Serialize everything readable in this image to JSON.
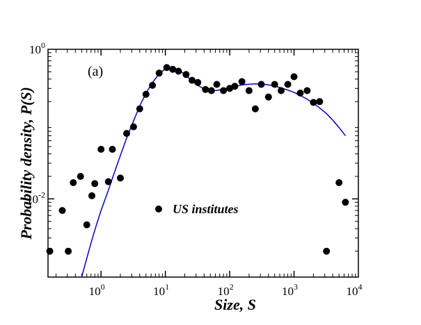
{
  "chart_data": {
    "type": "scatter",
    "title": "",
    "panel_label": "(a)",
    "xlabel": "Size, S",
    "ylabel": "Probability density, P(S)",
    "xscale": "log",
    "yscale": "log",
    "xlim": [
      0.15,
      10000
    ],
    "ylim": [
      0.0009,
      1.0
    ],
    "x_ticks": [
      {
        "value": 1,
        "base": "10",
        "exp": "0"
      },
      {
        "value": 10,
        "base": "10",
        "exp": "1"
      },
      {
        "value": 100,
        "base": "10",
        "exp": "2"
      },
      {
        "value": 1000,
        "base": "10",
        "exp": "3"
      },
      {
        "value": 10000,
        "base": "10",
        "exp": "4"
      }
    ],
    "y_ticks": [
      {
        "value": 0.01,
        "base": "10",
        "exp": "-2"
      },
      {
        "value": 1.0,
        "base": "10",
        "exp": "0"
      }
    ],
    "grid": false,
    "legend": {
      "position": "center-left",
      "entries": [
        "US institutes"
      ]
    },
    "series": [
      {
        "name": "US institutes",
        "kind": "markers",
        "marker": "circle",
        "color": "#000000",
        "points": [
          [
            0.16,
            0.002
          ],
          [
            0.25,
            0.007
          ],
          [
            0.31,
            0.002
          ],
          [
            0.37,
            0.0165
          ],
          [
            0.48,
            0.02
          ],
          [
            0.6,
            0.0045
          ],
          [
            0.72,
            0.011
          ],
          [
            0.8,
            0.016
          ],
          [
            1.0,
            0.046
          ],
          [
            1.3,
            0.017
          ],
          [
            1.5,
            0.046
          ],
          [
            2.0,
            0.019
          ],
          [
            2.5,
            0.075
          ],
          [
            3.2,
            0.092
          ],
          [
            4.0,
            0.16
          ],
          [
            5.0,
            0.25
          ],
          [
            6.3,
            0.33
          ],
          [
            8.0,
            0.48
          ],
          [
            10.5,
            0.57
          ],
          [
            13.0,
            0.54
          ],
          [
            16.0,
            0.51
          ],
          [
            21.0,
            0.46
          ],
          [
            26.0,
            0.385
          ],
          [
            32.0,
            0.36
          ],
          [
            42.0,
            0.29
          ],
          [
            52.0,
            0.28
          ],
          [
            63.0,
            0.34
          ],
          [
            80.0,
            0.28
          ],
          [
            100.0,
            0.3
          ],
          [
            120.0,
            0.32
          ],
          [
            155.0,
            0.37
          ],
          [
            200.0,
            0.28
          ],
          [
            250.0,
            0.16
          ],
          [
            310.0,
            0.34
          ],
          [
            400.0,
            0.23
          ],
          [
            500.0,
            0.34
          ],
          [
            630.0,
            0.28
          ],
          [
            800.0,
            0.34
          ],
          [
            1000.0,
            0.43
          ],
          [
            1250.0,
            0.26
          ],
          [
            1600.0,
            0.28
          ],
          [
            2000.0,
            0.195
          ],
          [
            2500.0,
            0.2
          ],
          [
            3200.0,
            0.002
          ],
          [
            5000.0,
            0.0165
          ],
          [
            6300.0,
            0.009
          ]
        ]
      },
      {
        "name": "fit",
        "kind": "line",
        "color": "#0000cc",
        "points": [
          [
            0.5,
            0.0009
          ],
          [
            0.6,
            0.0016
          ],
          [
            0.7,
            0.0026
          ],
          [
            0.85,
            0.0045
          ],
          [
            1.0,
            0.007
          ],
          [
            1.3,
            0.013
          ],
          [
            1.6,
            0.022
          ],
          [
            2.0,
            0.038
          ],
          [
            2.5,
            0.065
          ],
          [
            3.2,
            0.11
          ],
          [
            4.0,
            0.175
          ],
          [
            5.0,
            0.26
          ],
          [
            6.3,
            0.36
          ],
          [
            8.0,
            0.47
          ],
          [
            10.0,
            0.55
          ],
          [
            12.5,
            0.57
          ],
          [
            16.0,
            0.53
          ],
          [
            20.0,
            0.46
          ],
          [
            25.0,
            0.39
          ],
          [
            32.0,
            0.33
          ],
          [
            40.0,
            0.295
          ],
          [
            50.0,
            0.28
          ],
          [
            63.0,
            0.282
          ],
          [
            80.0,
            0.295
          ],
          [
            100.0,
            0.31
          ],
          [
            130.0,
            0.325
          ],
          [
            160.0,
            0.335
          ],
          [
            200.0,
            0.342
          ],
          [
            250.0,
            0.345
          ],
          [
            320.0,
            0.343
          ],
          [
            400.0,
            0.335
          ],
          [
            500.0,
            0.322
          ],
          [
            630.0,
            0.305
          ],
          [
            800.0,
            0.285
          ],
          [
            1000.0,
            0.265
          ],
          [
            1250.0,
            0.242
          ],
          [
            1600.0,
            0.215
          ],
          [
            2000.0,
            0.19
          ],
          [
            2500.0,
            0.165
          ],
          [
            3200.0,
            0.138
          ],
          [
            4000.0,
            0.113
          ],
          [
            5000.0,
            0.09
          ],
          [
            6300.0,
            0.07
          ]
        ]
      }
    ]
  }
}
